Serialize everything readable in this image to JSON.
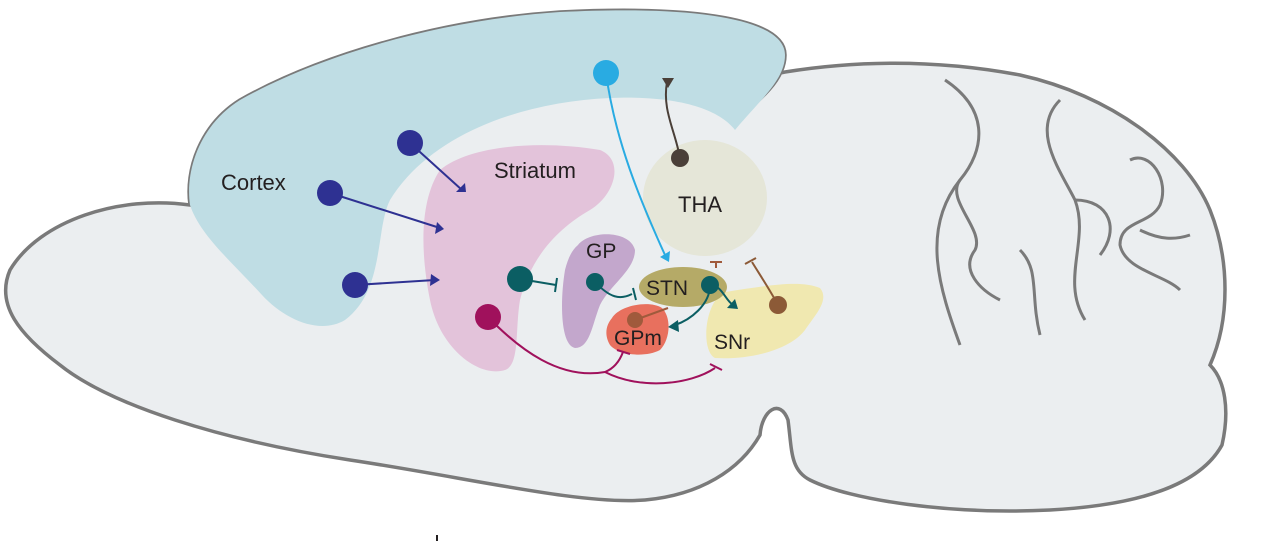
{
  "labels": {
    "cortex": "Cortex",
    "striatum": "Striatum",
    "gp": "GP",
    "stn": "STN",
    "gpm": "GPm",
    "snr": "SNr",
    "tha": "THA"
  },
  "colors": {
    "brain_fill": "#ebeef0",
    "brain_outline": "#7a7a7a",
    "cortex": "#bfdde4",
    "striatum": "#e3c3da",
    "gp": "#c3a7cc",
    "stn": "#b5aa67",
    "gpm": "#e8705e",
    "snr": "#f0e8b0",
    "tha": "#e5e6d8",
    "cortical_neuron": "#2e3192",
    "striatal_neuron_teal": "#0b5e63",
    "striatal_neuron_magenta": "#a0115c",
    "light_blue_neuron": "#29abe2",
    "thalamic_neuron": "#4a3f38",
    "snr_neuron": "#8c5a37",
    "stn_to_gpm": "#a05a3c"
  }
}
